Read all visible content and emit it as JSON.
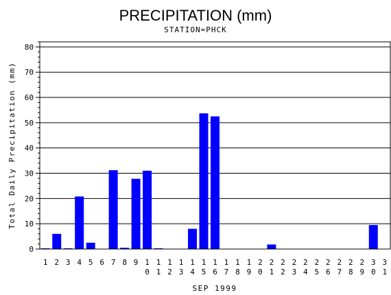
{
  "chart_data": {
    "type": "bar",
    "title": "PRECIPITATION (mm)",
    "subtitle": "STATION=PHCK",
    "xlabel": "SEP 1999",
    "ylabel": "Total Daily Precipitation (mm)",
    "ylim": [
      0,
      82
    ],
    "yticks": [
      0,
      10,
      20,
      30,
      40,
      50,
      60,
      70,
      80
    ],
    "grid": true,
    "bar_color": "#0000ff",
    "categories": [
      "1",
      "2",
      "3",
      "4",
      "5",
      "6",
      "7",
      "8",
      "9",
      "10",
      "11",
      "12",
      "13",
      "14",
      "15",
      "16",
      "17",
      "18",
      "19",
      "20",
      "21",
      "22",
      "23",
      "24",
      "25",
      "26",
      "27",
      "28",
      "29",
      "30",
      "31"
    ],
    "values": [
      0.3,
      6.0,
      0.3,
      20.8,
      2.5,
      0,
      31.2,
      0.5,
      27.8,
      31.0,
      0.3,
      0,
      0,
      8.0,
      53.7,
      52.5,
      0,
      0,
      0,
      0,
      1.8,
      0,
      0,
      0,
      0,
      0,
      0,
      0,
      0,
      9.5,
      0
    ]
  }
}
